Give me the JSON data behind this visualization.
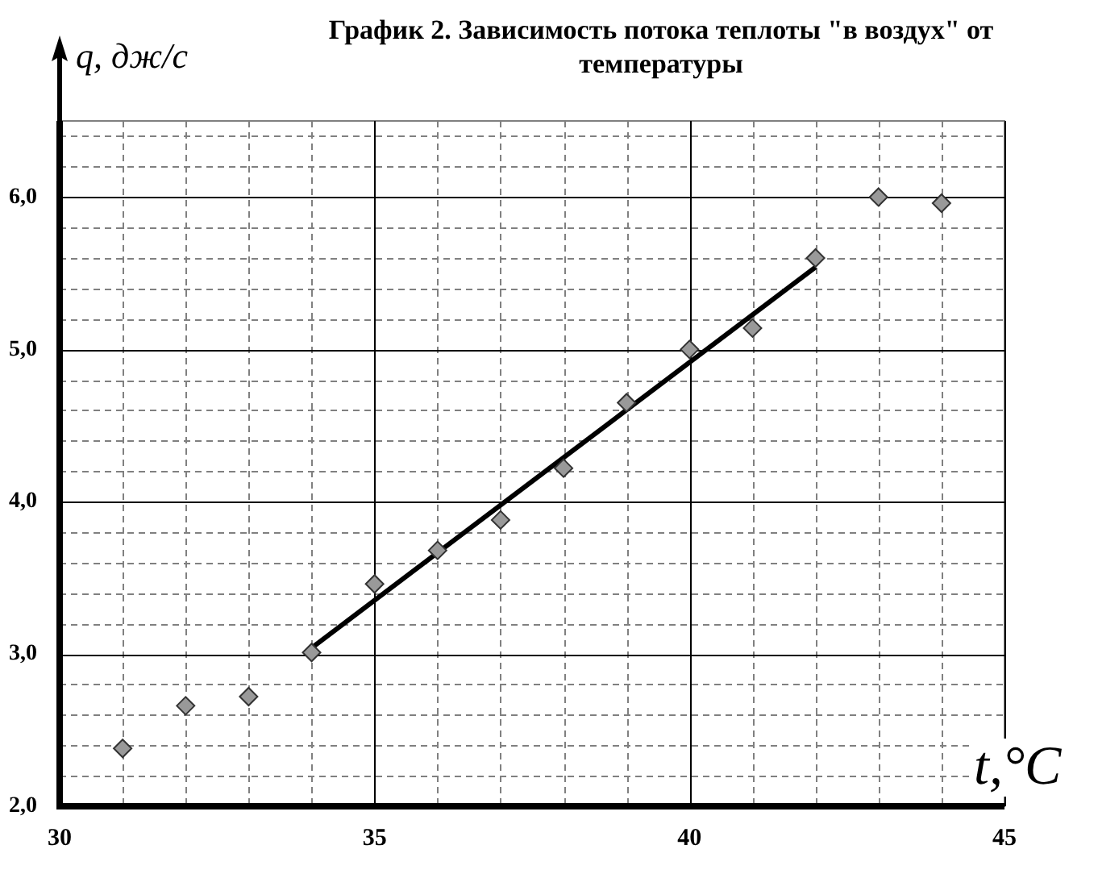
{
  "chart_data": {
    "type": "scatter",
    "title": "График 2. Зависимость потока теплоты \"в воздух\" от температуры",
    "xlabel": "t,°C",
    "ylabel": "q, дж/с",
    "series": [
      {
        "color": "#999999",
        "x": [
          31,
          32,
          33,
          34,
          35,
          36,
          37,
          38,
          39,
          40,
          41,
          42,
          43,
          44
        ],
        "values": [
          2.38,
          2.66,
          2.72,
          3.01,
          3.46,
          3.68,
          3.88,
          4.22,
          4.65,
          5.0,
          5.14,
          5.6,
          6.0,
          5.96
        ]
      },
      {
        "type": "line",
        "marker": "none",
        "color": "#000000",
        "x": [
          34,
          42
        ],
        "values": [
          3.04,
          5.54
        ]
      }
    ],
    "xlim": [
      30,
      45
    ],
    "xticks": [
      30,
      35,
      40,
      45
    ],
    "ylim": [
      2,
      6.5
    ],
    "yticks": [
      {
        "value": 2,
        "label": "2,0"
      },
      {
        "value": 3,
        "label": "3,0"
      },
      {
        "value": 4,
        "label": "4,0"
      },
      {
        "value": 5,
        "label": "5,0"
      },
      {
        "value": 6,
        "label": "6,0"
      }
    ],
    "grid": true,
    "marker": "diamond",
    "line_style": "solid",
    "legend": false
  }
}
